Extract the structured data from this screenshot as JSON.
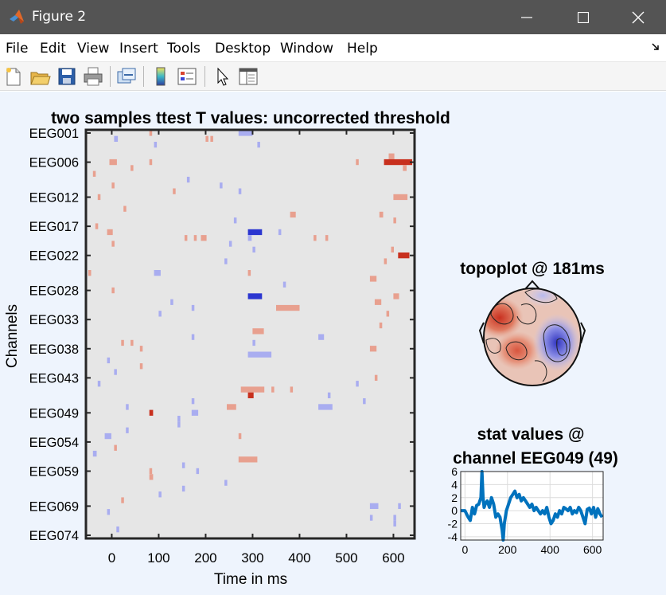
{
  "window": {
    "title": "Figure 2",
    "minimize_icon": "minimize-icon",
    "maximize_icon": "maximize-icon",
    "close_icon": "close-icon",
    "app_icon": "matlab-icon"
  },
  "menu": [
    "File",
    "Edit",
    "View",
    "Insert",
    "Tools",
    "Desktop",
    "Window",
    "Help"
  ],
  "toolbar": {
    "icons": [
      "new-figure-icon",
      "open-file-icon",
      "save-icon",
      "print-icon",
      "link-plot-icon",
      "insert-colorbar-icon",
      "insert-legend-icon",
      "edit-plot-icon",
      "property-inspector-icon"
    ]
  },
  "colors": {
    "positive": "#d9442f",
    "negative": "#3d46d6",
    "background_neutral": "#e6e6e6",
    "line": "#0072bd",
    "canvas": "#eef4fd"
  },
  "chart_data": [
    {
      "type": "heatmap",
      "title": "two samples ttest T values: uncorrected threshold",
      "xlabel": "Time in ms",
      "ylabel": "Channels",
      "xticks": [
        0,
        100,
        200,
        300,
        400,
        500,
        600
      ],
      "xlim": [
        -55,
        645
      ],
      "y_tick_labels": [
        "EEG001",
        "EEG006",
        "EEG012",
        "EEG017",
        "EEG022",
        "EEG028",
        "EEG033",
        "EEG038",
        "EEG043",
        "EEG049",
        "EEG054",
        "EEG059",
        "EEG069",
        "EEG074"
      ],
      "y_tick_indices": [
        1,
        6,
        12,
        17,
        22,
        28,
        33,
        38,
        43,
        49,
        54,
        59,
        65,
        70
      ],
      "n_channels": 70,
      "cells": [
        {
          "ch": 1,
          "t": 80,
          "w": 6,
          "v": 1
        },
        {
          "ch": 1,
          "t": 270,
          "w": 30,
          "v": -1
        },
        {
          "ch": 2,
          "t": 5,
          "w": 8,
          "v": -1
        },
        {
          "ch": 2,
          "t": 200,
          "w": 6,
          "v": 1
        },
        {
          "ch": 2,
          "t": 210,
          "w": 6,
          "v": 1
        },
        {
          "ch": 3,
          "t": 90,
          "w": 6,
          "v": -1
        },
        {
          "ch": 3,
          "t": 310,
          "w": 6,
          "v": -1
        },
        {
          "ch": 5,
          "t": 590,
          "w": 12,
          "v": 1
        },
        {
          "ch": 6,
          "t": -5,
          "w": 16,
          "v": 1
        },
        {
          "ch": 6,
          "t": 80,
          "w": 6,
          "v": 1
        },
        {
          "ch": 6,
          "t": 520,
          "w": 6,
          "v": 1
        },
        {
          "ch": 6,
          "t": 580,
          "w": 60,
          "v": 2
        },
        {
          "ch": 7,
          "t": 40,
          "w": 6,
          "v": 1
        },
        {
          "ch": 7,
          "t": 620,
          "w": 8,
          "v": 1
        },
        {
          "ch": 8,
          "t": -40,
          "w": 6,
          "v": 1
        },
        {
          "ch": 9,
          "t": 160,
          "w": 6,
          "v": -1
        },
        {
          "ch": 10,
          "t": 230,
          "w": 6,
          "v": -1
        },
        {
          "ch": 10,
          "t": 0,
          "w": 6,
          "v": 1
        },
        {
          "ch": 11,
          "t": 130,
          "w": 6,
          "v": 1
        },
        {
          "ch": 11,
          "t": 270,
          "w": 6,
          "v": -1
        },
        {
          "ch": 12,
          "t": -30,
          "w": 6,
          "v": 1
        },
        {
          "ch": 12,
          "t": 600,
          "w": 30,
          "v": 1
        },
        {
          "ch": 14,
          "t": 25,
          "w": 6,
          "v": 1
        },
        {
          "ch": 15,
          "t": 380,
          "w": 12,
          "v": 1
        },
        {
          "ch": 15,
          "t": 570,
          "w": 8,
          "v": 1
        },
        {
          "ch": 16,
          "t": 260,
          "w": 6,
          "v": -1
        },
        {
          "ch": 16,
          "t": 600,
          "w": 6,
          "v": 1
        },
        {
          "ch": 17,
          "t": -35,
          "w": 6,
          "v": 1
        },
        {
          "ch": 18,
          "t": -10,
          "w": 12,
          "v": 1
        },
        {
          "ch": 18,
          "t": 290,
          "w": 30,
          "v": -2
        },
        {
          "ch": 18,
          "t": 355,
          "w": 6,
          "v": -1
        },
        {
          "ch": 19,
          "t": 155,
          "w": 6,
          "v": 1
        },
        {
          "ch": 19,
          "t": 175,
          "w": 6,
          "v": 1
        },
        {
          "ch": 19,
          "t": 190,
          "w": 12,
          "v": 1
        },
        {
          "ch": 19,
          "t": 290,
          "w": 8,
          "v": -1
        },
        {
          "ch": 19,
          "t": 430,
          "w": 6,
          "v": 1
        },
        {
          "ch": 19,
          "t": 455,
          "w": 6,
          "v": 1
        },
        {
          "ch": 20,
          "t": 0,
          "w": 6,
          "v": 1
        },
        {
          "ch": 20,
          "t": 250,
          "w": 6,
          "v": -1
        },
        {
          "ch": 21,
          "t": 595,
          "w": 6,
          "v": 1
        },
        {
          "ch": 21,
          "t": 300,
          "w": 6,
          "v": -1
        },
        {
          "ch": 22,
          "t": 610,
          "w": 24,
          "v": 2
        },
        {
          "ch": 23,
          "t": 240,
          "w": 6,
          "v": -1
        },
        {
          "ch": 23,
          "t": 580,
          "w": 6,
          "v": 1
        },
        {
          "ch": 25,
          "t": -50,
          "w": 6,
          "v": 1
        },
        {
          "ch": 25,
          "t": 90,
          "w": 14,
          "v": -1
        },
        {
          "ch": 25,
          "t": 290,
          "w": 6,
          "v": 1
        },
        {
          "ch": 26,
          "t": 550,
          "w": 14,
          "v": 1
        },
        {
          "ch": 27,
          "t": 365,
          "w": 6,
          "v": -1
        },
        {
          "ch": 28,
          "t": 0,
          "w": 6,
          "v": 1
        },
        {
          "ch": 29,
          "t": 290,
          "w": 30,
          "v": -2
        },
        {
          "ch": 29,
          "t": 600,
          "w": 12,
          "v": 1
        },
        {
          "ch": 30,
          "t": 125,
          "w": 6,
          "v": -1
        },
        {
          "ch": 30,
          "t": 560,
          "w": 14,
          "v": 1
        },
        {
          "ch": 31,
          "t": 350,
          "w": 50,
          "v": 1
        },
        {
          "ch": 31,
          "t": 170,
          "w": 6,
          "v": -1
        },
        {
          "ch": 32,
          "t": 100,
          "w": 6,
          "v": -1
        },
        {
          "ch": 32,
          "t": 585,
          "w": 6,
          "v": 1
        },
        {
          "ch": 34,
          "t": 570,
          "w": 6,
          "v": 1
        },
        {
          "ch": 35,
          "t": 300,
          "w": 24,
          "v": 1
        },
        {
          "ch": 36,
          "t": 170,
          "w": 6,
          "v": -1
        },
        {
          "ch": 36,
          "t": 440,
          "w": 12,
          "v": -1
        },
        {
          "ch": 37,
          "t": 20,
          "w": 6,
          "v": 1
        },
        {
          "ch": 37,
          "t": 40,
          "w": 6,
          "v": 1
        },
        {
          "ch": 37,
          "t": 300,
          "w": 6,
          "v": -1
        },
        {
          "ch": 38,
          "t": 550,
          "w": 14,
          "v": 1
        },
        {
          "ch": 38,
          "t": 60,
          "w": 6,
          "v": 1
        },
        {
          "ch": 39,
          "t": 290,
          "w": 50,
          "v": -1
        },
        {
          "ch": 40,
          "t": -10,
          "w": 6,
          "v": -1
        },
        {
          "ch": 41,
          "t": 60,
          "w": 6,
          "v": 1
        },
        {
          "ch": 42,
          "t": 5,
          "w": 6,
          "v": -1
        },
        {
          "ch": 43,
          "t": 560,
          "w": 6,
          "v": 1
        },
        {
          "ch": 44,
          "t": -30,
          "w": 6,
          "v": -1
        },
        {
          "ch": 44,
          "t": 520,
          "w": 6,
          "v": -1
        },
        {
          "ch": 45,
          "t": 275,
          "w": 50,
          "v": 1
        },
        {
          "ch": 45,
          "t": 340,
          "w": 6,
          "v": 1
        },
        {
          "ch": 45,
          "t": 380,
          "w": 6,
          "v": 1
        },
        {
          "ch": 46,
          "t": 290,
          "w": 12,
          "v": 2
        },
        {
          "ch": 46,
          "t": 460,
          "w": 6,
          "v": -1
        },
        {
          "ch": 47,
          "t": 170,
          "w": 6,
          "v": -1
        },
        {
          "ch": 47,
          "t": 535,
          "w": 6,
          "v": -1
        },
        {
          "ch": 48,
          "t": 30,
          "w": 6,
          "v": -1
        },
        {
          "ch": 48,
          "t": 245,
          "w": 20,
          "v": 1
        },
        {
          "ch": 48,
          "t": 440,
          "w": 30,
          "v": -1
        },
        {
          "ch": 49,
          "t": 80,
          "w": 8,
          "v": 2
        },
        {
          "ch": 49,
          "t": 170,
          "w": 14,
          "v": -1
        },
        {
          "ch": 50,
          "t": 140,
          "w": 6,
          "v": -1
        },
        {
          "ch": 51,
          "t": 140,
          "w": 6,
          "v": -1
        },
        {
          "ch": 52,
          "t": 30,
          "w": 6,
          "v": -1
        },
        {
          "ch": 53,
          "t": -15,
          "w": 14,
          "v": -1
        },
        {
          "ch": 53,
          "t": 270,
          "w": 6,
          "v": 1
        },
        {
          "ch": 55,
          "t": 5,
          "w": 6,
          "v": 1
        },
        {
          "ch": 56,
          "t": -40,
          "w": 8,
          "v": -1
        },
        {
          "ch": 57,
          "t": 270,
          "w": 40,
          "v": 1
        },
        {
          "ch": 58,
          "t": 150,
          "w": 6,
          "v": -1
        },
        {
          "ch": 59,
          "t": 80,
          "w": 6,
          "v": 1
        },
        {
          "ch": 59,
          "t": 180,
          "w": 6,
          "v": -1
        },
        {
          "ch": 60,
          "t": 80,
          "w": 8,
          "v": 1
        },
        {
          "ch": 61,
          "t": 240,
          "w": 6,
          "v": -1
        },
        {
          "ch": 62,
          "t": 150,
          "w": 6,
          "v": -1
        },
        {
          "ch": 63,
          "t": 100,
          "w": 6,
          "v": -1
        },
        {
          "ch": 64,
          "t": 20,
          "w": 6,
          "v": 1
        },
        {
          "ch": 65,
          "t": 550,
          "w": 18,
          "v": -1
        },
        {
          "ch": 65,
          "t": 610,
          "w": 6,
          "v": -1
        },
        {
          "ch": 66,
          "t": -10,
          "w": 6,
          "v": -1
        },
        {
          "ch": 67,
          "t": 550,
          "w": 6,
          "v": -1
        },
        {
          "ch": 67,
          "t": 600,
          "w": 6,
          "v": -1
        },
        {
          "ch": 68,
          "t": 600,
          "w": 6,
          "v": -1
        },
        {
          "ch": 69,
          "t": 10,
          "w": 6,
          "v": -1
        }
      ]
    },
    {
      "type": "heatmap",
      "title": "topoplot @ 181ms",
      "xlabel": "",
      "ylabel": "",
      "description_regions": [
        {
          "pos": "left-front",
          "v": 2
        },
        {
          "pos": "center-left",
          "v": 1.5
        },
        {
          "pos": "right",
          "v": -2
        },
        {
          "pos": "front-right",
          "v": -0.8
        }
      ]
    },
    {
      "type": "line",
      "title": "stat values @\nchannel EEG049 (49)",
      "xlabel": "",
      "ylabel": "",
      "xlim": [
        -20,
        650
      ],
      "ylim": [
        -4.5,
        6
      ],
      "xticks": [
        0,
        200,
        400,
        600
      ],
      "yticks": [
        -4,
        -2,
        0,
        2,
        4,
        6
      ],
      "series": [
        {
          "x": [
            -20,
            0,
            15,
            25,
            35,
            45,
            55,
            65,
            75,
            80,
            85,
            90,
            95,
            105,
            115,
            125,
            135,
            145,
            155,
            165,
            175,
            180,
            185,
            190,
            195,
            205,
            215,
            225,
            235,
            245,
            255,
            265,
            275,
            285,
            295,
            305,
            315,
            325,
            335,
            345,
            355,
            365,
            375,
            385,
            395,
            405,
            415,
            425,
            435,
            445,
            455,
            465,
            475,
            485,
            495,
            505,
            515,
            525,
            535,
            545,
            555,
            565,
            575,
            585,
            595,
            605,
            615,
            625,
            635,
            645
          ],
          "y": [
            0,
            0,
            -1,
            -1.5,
            0.5,
            -0.5,
            0.8,
            1,
            2,
            6,
            2,
            0.5,
            1,
            1.5,
            0.5,
            2,
            1,
            -1,
            -0.5,
            -1,
            -3,
            -4.5,
            -2,
            -1,
            0,
            1,
            2,
            2.5,
            3,
            2,
            2.5,
            1.5,
            2,
            1.5,
            1,
            0.5,
            1,
            0,
            0.5,
            0,
            -0.5,
            0,
            -0.5,
            0.5,
            -1,
            -2,
            -1.5,
            -0.5,
            -1,
            0,
            -0.5,
            0.5,
            0.3,
            0,
            0.5,
            -0.5,
            0,
            -0.3,
            0.5,
            0,
            -1,
            -2,
            0.2,
            0.4,
            -0.5,
            0.5,
            -1,
            0.3,
            -0.5,
            -1
          ]
        }
      ]
    }
  ]
}
